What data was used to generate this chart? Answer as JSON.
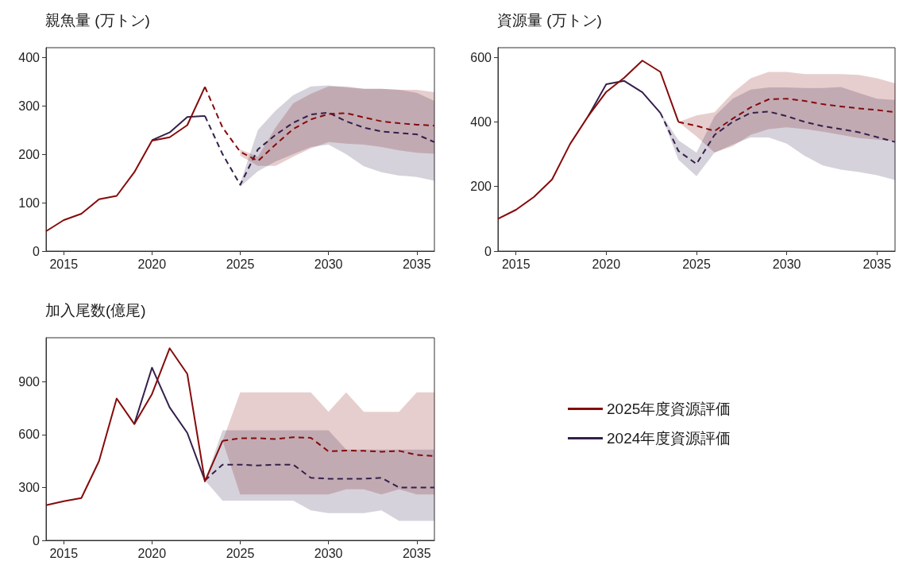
{
  "chart_data": [
    {
      "type": "line",
      "title": "親魚量 (万トン)",
      "xlim": [
        2014,
        2036
      ],
      "xticks": [
        2015,
        2020,
        2025,
        2030,
        2035
      ],
      "ylim": [
        0,
        420
      ],
      "yticks": [
        0,
        100,
        200,
        300,
        400
      ],
      "grid": false,
      "series": [
        {
          "color": "#850b0b",
          "line_style": "solid",
          "x": [
            2014,
            2015,
            2016,
            2017,
            2018,
            2019,
            2020,
            2021,
            2022,
            2023
          ],
          "values": [
            41,
            64,
            77,
            107,
            114,
            163,
            228,
            235,
            260,
            339
          ]
        },
        {
          "color": "#850b0b",
          "line_style": "dashed",
          "x": [
            2023,
            2024,
            2025,
            2026,
            2027,
            2028,
            2029,
            2030,
            2031,
            2032,
            2033,
            2034,
            2035,
            2036
          ],
          "values": [
            339,
            255,
            205,
            186,
            220,
            252,
            272,
            283,
            285,
            276,
            268,
            264,
            261,
            259
          ],
          "lower": [
            null,
            null,
            197,
            176,
            176,
            195,
            212,
            225,
            222,
            220,
            215,
            208,
            203,
            201
          ],
          "upper": [
            null,
            null,
            210,
            195,
            255,
            305,
            325,
            340,
            340,
            335,
            335,
            333,
            333,
            328
          ]
        },
        {
          "color": "#34204a",
          "line_style": "solid",
          "x": [
            2020,
            2021,
            2022,
            2023
          ],
          "values": [
            229,
            245,
            277,
            279
          ]
        },
        {
          "color": "#34204a",
          "line_style": "dashed",
          "x": [
            2023,
            2024,
            2025,
            2026,
            2027,
            2028,
            2029,
            2030,
            2031,
            2032,
            2033,
            2034,
            2035,
            2036
          ],
          "values": [
            279,
            200,
            137,
            210,
            240,
            265,
            282,
            286,
            268,
            255,
            247,
            244,
            241,
            225
          ],
          "lower": [
            null,
            null,
            133,
            165,
            185,
            200,
            215,
            220,
            200,
            175,
            163,
            156,
            153,
            145
          ],
          "upper": [
            null,
            null,
            140,
            250,
            290,
            322,
            340,
            342,
            338,
            335,
            335,
            333,
            327,
            310
          ]
        }
      ]
    },
    {
      "type": "line",
      "title": "資源量 (万トン)",
      "xlim": [
        2014,
        2036
      ],
      "xticks": [
        2015,
        2020,
        2025,
        2030,
        2035
      ],
      "ylim": [
        0,
        630
      ],
      "yticks": [
        0,
        200,
        400,
        600
      ],
      "grid": false,
      "series": [
        {
          "color": "#850b0b",
          "line_style": "solid",
          "x": [
            2014,
            2015,
            2016,
            2017,
            2018,
            2019,
            2020,
            2021,
            2022,
            2023,
            2024
          ],
          "values": [
            100,
            128,
            168,
            222,
            332,
            418,
            493,
            537,
            590,
            555,
            400
          ]
        },
        {
          "color": "#850b0b",
          "line_style": "dashed",
          "x": [
            2024,
            2025,
            2026,
            2027,
            2028,
            2029,
            2030,
            2031,
            2032,
            2033,
            2034,
            2035,
            2036
          ],
          "values": [
            400,
            388,
            372,
            410,
            445,
            470,
            472,
            465,
            455,
            448,
            442,
            437,
            430
          ],
          "lower": [
            400,
            355,
            305,
            325,
            360,
            378,
            383,
            378,
            370,
            360,
            350,
            345,
            340
          ],
          "upper": [
            400,
            420,
            430,
            490,
            535,
            555,
            555,
            548,
            548,
            548,
            546,
            535,
            520
          ]
        },
        {
          "color": "#34204a",
          "line_style": "solid",
          "x": [
            2019,
            2020,
            2021,
            2022,
            2023
          ],
          "values": [
            418,
            517,
            527,
            492,
            428
          ]
        },
        {
          "color": "#34204a",
          "line_style": "dashed",
          "x": [
            2023,
            2024,
            2025,
            2026,
            2027,
            2028,
            2029,
            2030,
            2031,
            2032,
            2033,
            2034,
            2035,
            2036
          ],
          "values": [
            428,
            310,
            270,
            360,
            400,
            428,
            432,
            418,
            400,
            387,
            378,
            368,
            353,
            338
          ],
          "lower": [
            428,
            283,
            232,
            305,
            330,
            352,
            352,
            333,
            295,
            265,
            252,
            245,
            235,
            220
          ],
          "upper": [
            428,
            343,
            305,
            418,
            472,
            500,
            507,
            507,
            505,
            505,
            508,
            490,
            472,
            468
          ]
        }
      ]
    },
    {
      "type": "line",
      "title": "加入尾数(億尾)",
      "xlim": [
        2014,
        2036
      ],
      "xticks": [
        2015,
        2020,
        2025,
        2030,
        2035
      ],
      "ylim": [
        0,
        1150
      ],
      "yticks": [
        0,
        300,
        600,
        900
      ],
      "grid": false,
      "legend": "right",
      "series": [
        {
          "name": "2025年度資源評価",
          "color": "#850b0b",
          "line_style": "solid",
          "x": [
            2014,
            2015,
            2016,
            2017,
            2018,
            2019,
            2020,
            2021,
            2022,
            2023,
            2024
          ],
          "values": [
            200,
            222,
            240,
            450,
            805,
            660,
            830,
            1090,
            945,
            335,
            565
          ]
        },
        {
          "color": "#850b0b",
          "line_style": "dashed",
          "x": [
            2024,
            2025,
            2026,
            2027,
            2028,
            2029,
            2030,
            2031,
            2032,
            2033,
            2034,
            2035,
            2036
          ],
          "values": [
            565,
            580,
            580,
            575,
            585,
            582,
            505,
            510,
            508,
            503,
            508,
            485,
            478
          ],
          "lower": [
            565,
            260,
            260,
            260,
            260,
            260,
            260,
            290,
            290,
            260,
            290,
            260,
            260
          ],
          "upper": [
            565,
            840,
            840,
            840,
            840,
            840,
            730,
            840,
            730,
            730,
            730,
            840,
            840
          ]
        },
        {
          "name": "2024年度資源評価",
          "color": "#34204a",
          "line_style": "solid",
          "x": [
            2019,
            2020,
            2021,
            2022,
            2023
          ],
          "values": [
            660,
            980,
            755,
            610,
            340
          ]
        },
        {
          "color": "#34204a",
          "line_style": "dashed",
          "x": [
            2023,
            2024,
            2025,
            2026,
            2027,
            2028,
            2029,
            2030,
            2031,
            2032,
            2033,
            2034,
            2035,
            2036
          ],
          "values": [
            340,
            430,
            430,
            425,
            430,
            430,
            355,
            350,
            350,
            350,
            355,
            300,
            300,
            300
          ],
          "lower": [
            340,
            225,
            225,
            225,
            225,
            225,
            170,
            155,
            155,
            155,
            170,
            110,
            110,
            110
          ],
          "upper": [
            340,
            625,
            625,
            625,
            625,
            625,
            625,
            625,
            515,
            515,
            515,
            515,
            515,
            515
          ]
        }
      ]
    }
  ]
}
